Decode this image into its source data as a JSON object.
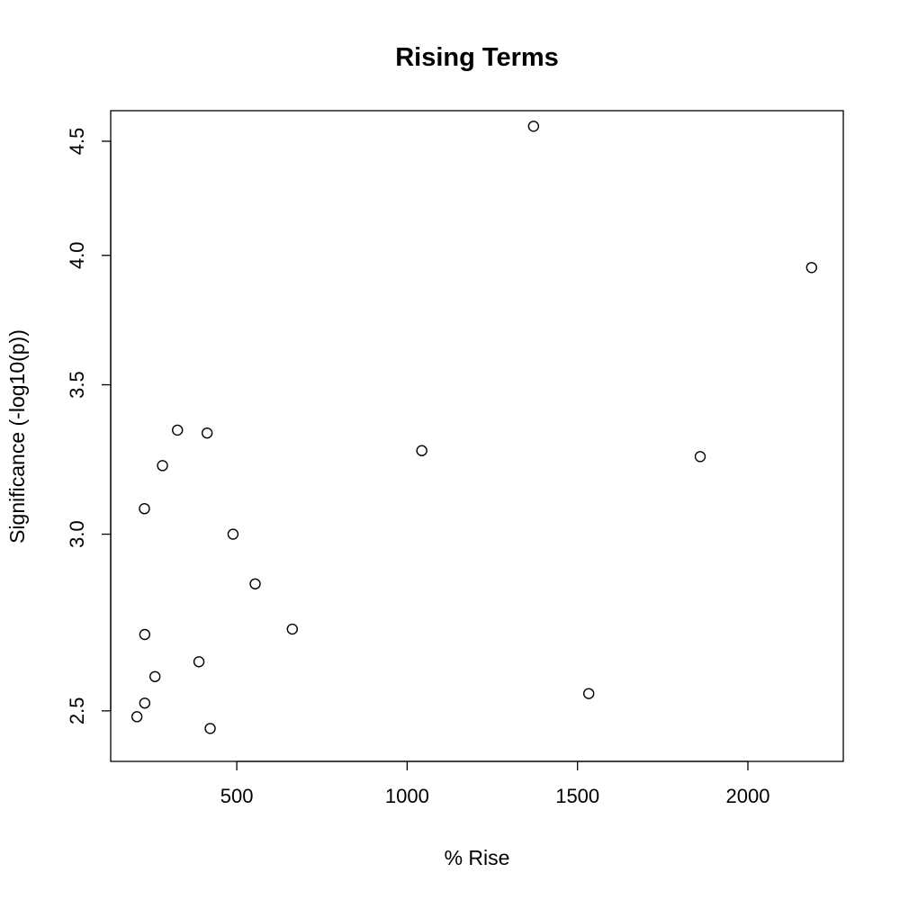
{
  "chart_data": {
    "type": "scatter",
    "title": "Rising Terms",
    "xlabel": "% Rise",
    "ylabel": "Significance (-log10(p))",
    "xlim": [
      130,
      2280
    ],
    "ylim": [
      2.373,
      4.644
    ],
    "y_scale": "log",
    "grid": false,
    "marker": "open-circle",
    "x_ticks": [
      500,
      1000,
      1500,
      2000
    ],
    "x_tick_labels": [
      "500",
      "1000",
      "1500",
      "2000"
    ],
    "y_ticks": [
      2.5,
      3.0,
      3.5,
      4.0,
      4.5
    ],
    "y_tick_labels": [
      "2.5",
      "3.0",
      "3.5",
      "4.0",
      "4.5"
    ],
    "points": [
      {
        "x": 1371,
        "y": 4.57
      },
      {
        "x": 2187,
        "y": 3.95
      },
      {
        "x": 326,
        "y": 3.34
      },
      {
        "x": 413,
        "y": 3.33
      },
      {
        "x": 1043,
        "y": 3.27
      },
      {
        "x": 1860,
        "y": 3.25
      },
      {
        "x": 282,
        "y": 3.22
      },
      {
        "x": 229,
        "y": 3.08
      },
      {
        "x": 489,
        "y": 3.0
      },
      {
        "x": 554,
        "y": 2.85
      },
      {
        "x": 663,
        "y": 2.72
      },
      {
        "x": 230,
        "y": 2.705
      },
      {
        "x": 389,
        "y": 2.63
      },
      {
        "x": 260,
        "y": 2.59
      },
      {
        "x": 1533,
        "y": 2.545
      },
      {
        "x": 230,
        "y": 2.52
      },
      {
        "x": 207,
        "y": 2.485
      },
      {
        "x": 422,
        "y": 2.455
      }
    ]
  }
}
